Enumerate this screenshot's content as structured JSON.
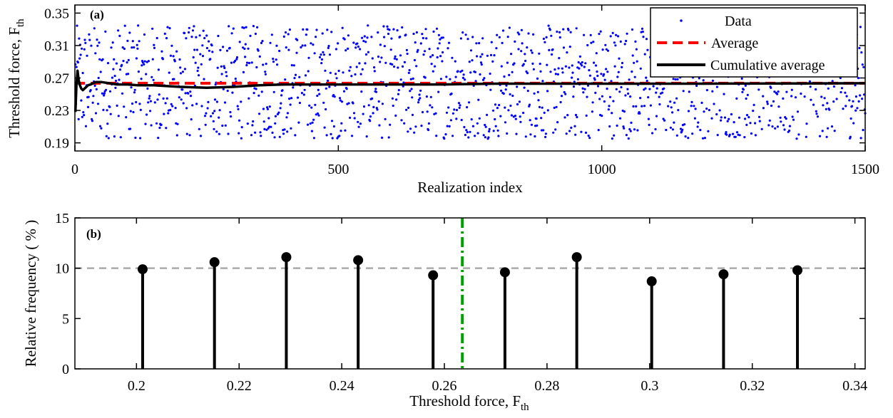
{
  "chart_data": [
    {
      "panel": "(a)",
      "type": "scatter",
      "xlabel": "Realization index",
      "ylabel": "Threshold force, F",
      "ylabel_sub": "th",
      "xlim": [
        0,
        1500
      ],
      "ylim": [
        0.18,
        0.36
      ],
      "xticks": [
        0,
        500,
        1000,
        1500
      ],
      "yticks": [
        0.19,
        0.23,
        0.27,
        0.31,
        0.35
      ],
      "xtick_labels": [
        "0",
        "500",
        "1000",
        "1500"
      ],
      "ytick_labels": [
        "0.19",
        "0.23",
        "0.27",
        "0.31",
        "0.35"
      ],
      "grid": false,
      "legend_position": "top-right",
      "series": [
        {
          "name": "Data",
          "kind": "points",
          "color": "#0000ff",
          "n_points": 1500,
          "x_range": [
            1,
            1500
          ],
          "y_range": [
            0.195,
            0.335
          ]
        },
        {
          "name": "Average",
          "kind": "dashed-line",
          "color": "#ff0000",
          "x": [
            0,
            1500
          ],
          "y": [
            0.2635,
            0.2635
          ]
        },
        {
          "name": "Cumulative average",
          "kind": "line",
          "color": "#000000",
          "x": [
            1,
            3,
            5,
            7,
            9,
            12,
            15,
            20,
            25,
            30,
            40,
            50,
            60,
            80,
            100,
            120,
            150,
            200,
            250,
            300,
            350,
            400,
            500,
            600,
            700,
            800,
            1000,
            1200,
            1500
          ],
          "y": [
            0.228,
            0.262,
            0.279,
            0.268,
            0.262,
            0.257,
            0.255,
            0.258,
            0.261,
            0.262,
            0.265,
            0.265,
            0.264,
            0.262,
            0.262,
            0.261,
            0.261,
            0.259,
            0.258,
            0.259,
            0.261,
            0.262,
            0.262,
            0.262,
            0.262,
            0.263,
            0.263,
            0.263,
            0.2635
          ]
        }
      ]
    },
    {
      "panel": "(b)",
      "type": "bar",
      "subtype": "stem",
      "xlabel": "Threshold force, F",
      "xlabel_sub": "th",
      "ylabel": "Relative frequency ( % )",
      "xlim": [
        0.188,
        0.342
      ],
      "ylim": [
        0,
        15
      ],
      "xticks": [
        0.2,
        0.22,
        0.24,
        0.26,
        0.28,
        0.3,
        0.32,
        0.34
      ],
      "yticks": [
        0,
        5,
        10,
        15
      ],
      "xtick_labels": [
        "0.2",
        "0.22",
        "0.24",
        "0.26",
        "0.28",
        "0.3",
        "0.32",
        "0.34"
      ],
      "ytick_labels": [
        "0",
        "5",
        "10",
        "15"
      ],
      "grid": false,
      "x": [
        0.2012,
        0.2152,
        0.2292,
        0.2432,
        0.2578,
        0.2718,
        0.2858,
        0.3004,
        0.3144,
        0.3288
      ],
      "values": [
        9.9,
        10.6,
        11.1,
        10.8,
        9.3,
        9.6,
        11.1,
        8.7,
        9.4,
        9.8
      ],
      "reference_line": {
        "y": 10,
        "style": "dashed",
        "color": "#aaaaaa"
      },
      "mean_line": {
        "x": 0.2635,
        "style": "dash-dot",
        "color": "#00a000"
      }
    }
  ]
}
